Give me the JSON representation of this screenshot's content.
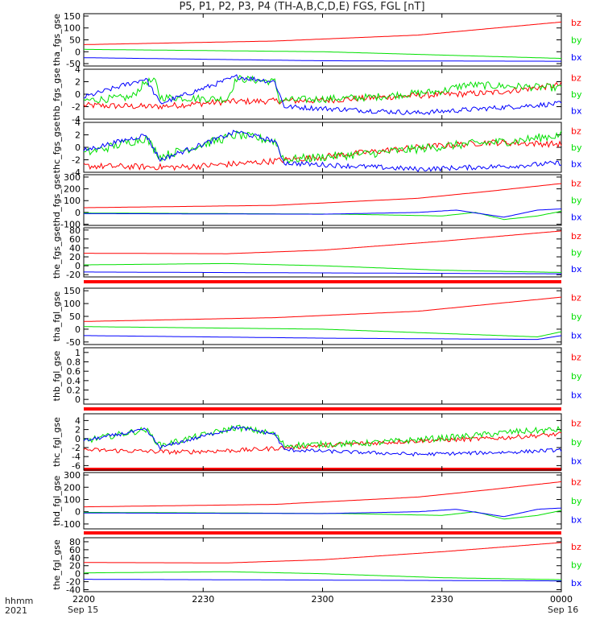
{
  "title": "P5, P1, P2, P3, P4 (TH-A,B,C,D,E) FGS, FGL [nT]",
  "colors": {
    "bx": "#0000ff",
    "by": "#00e000",
    "bz": "#ff0000",
    "axis": "#000000",
    "bar": "#ff0000"
  },
  "footer": {
    "left_line1": "hhmm",
    "left_line2": "2021",
    "start_date": "Sep 15",
    "end_date": "Sep 16"
  },
  "chart_data": {
    "type": "line",
    "x_ticks": [
      "2200",
      "2230",
      "2300",
      "2330",
      "0000"
    ],
    "x_range": [
      "2021-09-15 22:00",
      "2021-09-16 00:00"
    ],
    "legend": [
      "bz",
      "by",
      "bx"
    ],
    "legend_placement": "right",
    "panels": [
      {
        "ylabel": "tha_fgs_gse",
        "ylim": [
          -60,
          160
        ],
        "yticks": [
          150,
          100,
          50,
          0,
          -50
        ],
        "series": [
          {
            "name": "bz",
            "trend": [
              [
                0,
                30
              ],
              [
                0.4,
                45
              ],
              [
                0.7,
                70
              ],
              [
                1,
                125
              ]
            ],
            "noise": 0
          },
          {
            "name": "by",
            "trend": [
              [
                0,
                10
              ],
              [
                0.5,
                0
              ],
              [
                1,
                -28
              ]
            ],
            "noise": 0
          },
          {
            "name": "bx",
            "trend": [
              [
                0,
                -25
              ],
              [
                0.5,
                -38
              ],
              [
                1,
                -40
              ]
            ],
            "noise": 0
          }
        ]
      },
      {
        "ylabel": "thb_fgs_gse",
        "ylim": [
          -4,
          4
        ],
        "yticks": [
          4,
          2,
          0,
          -2,
          -4
        ],
        "series": [
          {
            "name": "bz",
            "trend": [
              [
                0,
                -1.8
              ],
              [
                0.15,
                -2
              ],
              [
                0.3,
                -1.2
              ],
              [
                0.5,
                -1
              ],
              [
                0.7,
                -0.2
              ],
              [
                0.85,
                0.2
              ],
              [
                1,
                1.5
              ]
            ],
            "noise": 0.5
          },
          {
            "name": "by",
            "trend": [
              [
                0,
                -1
              ],
              [
                0.1,
                -0.5
              ],
              [
                0.13,
                2
              ],
              [
                0.15,
                2
              ],
              [
                0.16,
                -0.5
              ],
              [
                0.3,
                -0.8
              ],
              [
                0.32,
                2.5
              ],
              [
                0.4,
                2
              ],
              [
                0.41,
                -1
              ],
              [
                0.6,
                -0.5
              ],
              [
                0.75,
                0.5
              ],
              [
                0.8,
                1.5
              ],
              [
                1,
                1
              ]
            ],
            "noise": 0.6
          },
          {
            "name": "bx",
            "trend": [
              [
                0,
                -0.5
              ],
              [
                0.13,
                2.5
              ],
              [
                0.16,
                -1.5
              ],
              [
                0.32,
                2.8
              ],
              [
                0.4,
                2
              ],
              [
                0.42,
                -2
              ],
              [
                0.7,
                -3
              ],
              [
                0.8,
                -2.5
              ],
              [
                1,
                -1.5
              ]
            ],
            "noise": 0.4
          }
        ]
      },
      {
        "ylabel": "thc_fgs_gse",
        "ylim": [
          -4,
          4
        ],
        "yticks": [
          4,
          2,
          0,
          -2,
          -4
        ],
        "series": [
          {
            "name": "bz",
            "trend": [
              [
                0,
                -3
              ],
              [
                0.2,
                -3.2
              ],
              [
                0.35,
                -2.5
              ],
              [
                0.5,
                -1.5
              ],
              [
                0.7,
                0
              ],
              [
                0.85,
                0.8
              ],
              [
                1,
                0.5
              ]
            ],
            "noise": 0.5
          },
          {
            "name": "by",
            "trend": [
              [
                0,
                -1
              ],
              [
                0.13,
                1.5
              ],
              [
                0.16,
                -1.5
              ],
              [
                0.32,
                2
              ],
              [
                0.4,
                1
              ],
              [
                0.42,
                -2
              ],
              [
                0.6,
                -1
              ],
              [
                0.8,
                0.5
              ],
              [
                0.9,
                1
              ],
              [
                1,
                2
              ]
            ],
            "noise": 0.7
          },
          {
            "name": "bx",
            "trend": [
              [
                0,
                -0.5
              ],
              [
                0.13,
                2
              ],
              [
                0.16,
                -2
              ],
              [
                0.32,
                2.5
              ],
              [
                0.4,
                1
              ],
              [
                0.42,
                -2.5
              ],
              [
                0.7,
                -3.5
              ],
              [
                0.9,
                -3
              ],
              [
                1,
                -2.5
              ]
            ],
            "noise": 0.4
          }
        ]
      },
      {
        "ylabel": "thd_fgs_gse",
        "ylim": [
          -110,
          320
        ],
        "yticks": [
          300,
          200,
          100,
          0,
          -100
        ],
        "series": [
          {
            "name": "bz",
            "trend": [
              [
                0,
                40
              ],
              [
                0.4,
                60
              ],
              [
                0.7,
                120
              ],
              [
                0.85,
                180
              ],
              [
                1,
                245
              ]
            ],
            "noise": 0
          },
          {
            "name": "by",
            "trend": [
              [
                0,
                -5
              ],
              [
                0.3,
                -10
              ],
              [
                0.55,
                -15
              ],
              [
                0.75,
                -30
              ],
              [
                0.82,
                0
              ],
              [
                0.88,
                -60
              ],
              [
                0.95,
                -30
              ],
              [
                1,
                10
              ]
            ],
            "noise": 0
          },
          {
            "name": "bx",
            "trend": [
              [
                0,
                -10
              ],
              [
                0.5,
                -15
              ],
              [
                0.7,
                0
              ],
              [
                0.78,
                20
              ],
              [
                0.88,
                -40
              ],
              [
                0.95,
                20
              ],
              [
                1,
                30
              ]
            ],
            "noise": 0
          }
        ]
      },
      {
        "ylabel": "the_fgs_gse",
        "ylim": [
          -25,
          85
        ],
        "yticks": [
          80,
          60,
          40,
          20,
          0,
          -20
        ],
        "series": [
          {
            "name": "bz",
            "trend": [
              [
                0,
                28
              ],
              [
                0.3,
                27
              ],
              [
                0.5,
                35
              ],
              [
                0.75,
                55
              ],
              [
                1,
                78
              ]
            ],
            "noise": 0
          },
          {
            "name": "by",
            "trend": [
              [
                0,
                2
              ],
              [
                0.3,
                5
              ],
              [
                0.5,
                0
              ],
              [
                0.75,
                -10
              ],
              [
                1,
                -15
              ]
            ],
            "noise": 0
          },
          {
            "name": "bx",
            "trend": [
              [
                0,
                -14
              ],
              [
                0.5,
                -16
              ],
              [
                1,
                -18
              ]
            ],
            "noise": 0
          }
        ]
      },
      {
        "ylabel": "tha_fgl_gse",
        "ylim": [
          -60,
          160
        ],
        "yticks": [
          150,
          100,
          50,
          0,
          -50
        ],
        "series": [
          {
            "name": "bz",
            "trend": [
              [
                0,
                30
              ],
              [
                0.4,
                45
              ],
              [
                0.7,
                70
              ],
              [
                1,
                125
              ]
            ],
            "noise": 0
          },
          {
            "name": "by",
            "trend": [
              [
                0,
                10
              ],
              [
                0.5,
                0
              ],
              [
                0.95,
                -30
              ],
              [
                1,
                -10
              ]
            ],
            "noise": 0
          },
          {
            "name": "bx",
            "trend": [
              [
                0,
                -25
              ],
              [
                0.5,
                -35
              ],
              [
                0.95,
                -40
              ],
              [
                1,
                -25
              ]
            ],
            "noise": 0
          }
        ]
      },
      {
        "ylabel": "thb_fgl_gse",
        "ylim": [
          -0.1,
          1.1
        ],
        "yticks": [
          1.0,
          0.8,
          0.6,
          0.4,
          0.2,
          0.0
        ],
        "series": []
      },
      {
        "ylabel": "thc_fgl_gse",
        "ylim": [
          -7,
          5.5
        ],
        "yticks": [
          4,
          2,
          0,
          -2,
          -4,
          -6
        ],
        "series": [
          {
            "name": "bz",
            "trend": [
              [
                0,
                -2.5
              ],
              [
                0.2,
                -3
              ],
              [
                0.35,
                -2.5
              ],
              [
                0.5,
                -1.5
              ],
              [
                0.7,
                -0.5
              ],
              [
                0.85,
                0
              ],
              [
                1,
                1
              ]
            ],
            "noise": 0.5
          },
          {
            "name": "by",
            "trend": [
              [
                0,
                -0.5
              ],
              [
                0.13,
                2
              ],
              [
                0.16,
                -1.5
              ],
              [
                0.32,
                2.5
              ],
              [
                0.4,
                1
              ],
              [
                0.42,
                -1.5
              ],
              [
                0.6,
                -1
              ],
              [
                0.8,
                0.5
              ],
              [
                0.9,
                1.5
              ],
              [
                1,
                2
              ]
            ],
            "noise": 0.7
          },
          {
            "name": "bx",
            "trend": [
              [
                0,
                -0.5
              ],
              [
                0.13,
                2
              ],
              [
                0.16,
                -2
              ],
              [
                0.32,
                2.5
              ],
              [
                0.4,
                1
              ],
              [
                0.42,
                -2.5
              ],
              [
                0.7,
                -3.5
              ],
              [
                0.9,
                -3
              ],
              [
                1,
                -2.5
              ]
            ],
            "noise": 0.4
          }
        ]
      },
      {
        "ylabel": "thd_fgl_gse",
        "ylim": [
          -140,
          320
        ],
        "yticks": [
          300,
          200,
          100,
          0,
          -100
        ],
        "series": [
          {
            "name": "bz",
            "trend": [
              [
                0,
                40
              ],
              [
                0.4,
                60
              ],
              [
                0.7,
                120
              ],
              [
                0.85,
                180
              ],
              [
                1,
                245
              ]
            ],
            "noise": 0
          },
          {
            "name": "by",
            "trend": [
              [
                0,
                -5
              ],
              [
                0.3,
                -10
              ],
              [
                0.55,
                -15
              ],
              [
                0.75,
                -30
              ],
              [
                0.82,
                0
              ],
              [
                0.88,
                -60
              ],
              [
                0.95,
                -30
              ],
              [
                1,
                10
              ]
            ],
            "noise": 0
          },
          {
            "name": "bx",
            "trend": [
              [
                0,
                -10
              ],
              [
                0.5,
                -15
              ],
              [
                0.7,
                0
              ],
              [
                0.78,
                20
              ],
              [
                0.88,
                -40
              ],
              [
                0.95,
                20
              ],
              [
                1,
                30
              ]
            ],
            "noise": 0
          }
        ]
      },
      {
        "ylabel": "the_fgl_gse",
        "ylim": [
          -45,
          90
        ],
        "yticks": [
          80,
          60,
          40,
          20,
          0,
          -20,
          -40
        ],
        "series": [
          {
            "name": "bz",
            "trend": [
              [
                0,
                28
              ],
              [
                0.3,
                27
              ],
              [
                0.5,
                35
              ],
              [
                0.75,
                55
              ],
              [
                1,
                78
              ]
            ],
            "noise": 0
          },
          {
            "name": "by",
            "trend": [
              [
                0,
                2
              ],
              [
                0.3,
                5
              ],
              [
                0.5,
                0
              ],
              [
                0.75,
                -10
              ],
              [
                1,
                -15
              ]
            ],
            "noise": 0
          },
          {
            "name": "bx",
            "trend": [
              [
                0,
                -14
              ],
              [
                0.5,
                -16
              ],
              [
                1,
                -18
              ]
            ],
            "noise": 0
          }
        ]
      }
    ]
  }
}
